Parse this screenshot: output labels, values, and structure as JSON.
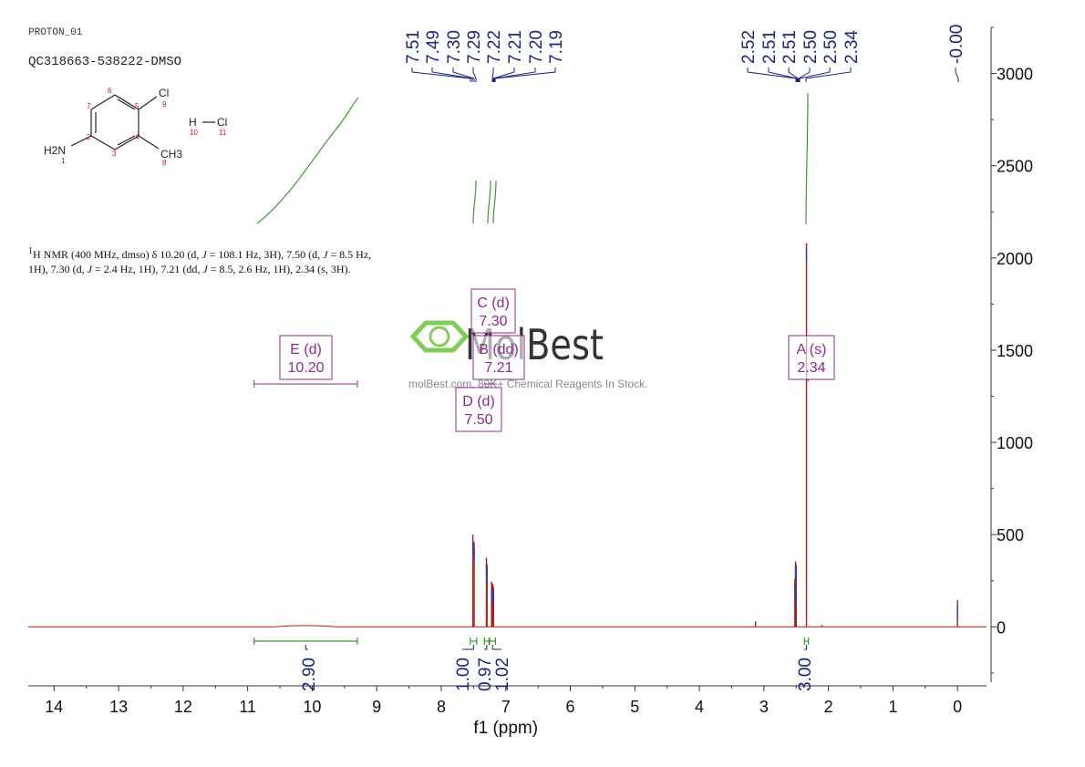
{
  "header": {
    "experiment": "PROTON_01",
    "sample": "QC318663-538222-DMSO"
  },
  "description": {
    "sup": "1",
    "p1": "H NMR (400 MHz, dmso) δ 10.20 (d, ",
    "j1": "J",
    "p2": " = 108.1 Hz, 3H), 7.50 (d, ",
    "j2": "J",
    "p3": " = 8.5 Hz, 1H), 7.30 (d, ",
    "j3": "J",
    "p4": " = 2.4 Hz, 1H), 7.21 (dd, ",
    "j4": "J",
    "p5": " = 8.5, 2.6 Hz, 1H), 2.34 (s, 3H)."
  },
  "structure": {
    "atoms": [
      "H2N",
      "Cl",
      "CH3",
      "H",
      "Cl"
    ],
    "numbers": [
      "1",
      "2",
      "3",
      "4",
      "5",
      "6",
      "7",
      "8",
      "9",
      "10",
      "11"
    ]
  },
  "watermark": {
    "brand": "MolBest",
    "tagline": "molBest.com, 80K+ Chemical Reagents In Stock."
  },
  "colors": {
    "spectrum": "#a8201a",
    "integral": "#3a9a2c",
    "peak_label": "#1a237e",
    "multiplet": "#8e2a8c",
    "brand_green": "#6cc23a"
  },
  "chart_data": {
    "type": "line",
    "xlabel": "f1 (ppm)",
    "ylabel": "",
    "xlim": [
      14.4,
      -0.45
    ],
    "ylim": [
      -300,
      3250
    ],
    "x_ticks": [
      14,
      13,
      12,
      11,
      10,
      9,
      8,
      7,
      6,
      5,
      4,
      3,
      2,
      1,
      0
    ],
    "y_ticks": [
      0,
      500,
      1000,
      1500,
      2000,
      2500,
      3000
    ],
    "peaks": [
      {
        "ppm": 7.51,
        "intensity": 500
      },
      {
        "ppm": 7.49,
        "intensity": 460
      },
      {
        "ppm": 7.3,
        "intensity": 375
      },
      {
        "ppm": 7.29,
        "intensity": 340
      },
      {
        "ppm": 7.22,
        "intensity": 245
      },
      {
        "ppm": 7.21,
        "intensity": 235
      },
      {
        "ppm": 7.2,
        "intensity": 230
      },
      {
        "ppm": 7.19,
        "intensity": 215
      },
      {
        "ppm": 3.13,
        "intensity": 30
      },
      {
        "ppm": 2.52,
        "intensity": 260
      },
      {
        "ppm": 2.51,
        "intensity": 355
      },
      {
        "ppm": 2.5,
        "intensity": 340
      },
      {
        "ppm": 2.5,
        "intensity": 240
      },
      {
        "ppm": 2.34,
        "intensity": 2080
      },
      {
        "ppm": 2.1,
        "intensity": 10
      },
      {
        "ppm": 0.0,
        "intensity": 145
      }
    ],
    "peak_labels_left": [
      "7.51",
      "7.49",
      "7.30",
      "7.29",
      "7.22",
      "7.21",
      "7.20",
      "7.19"
    ],
    "peak_labels_mid": [
      "2.52",
      "2.51",
      "2.51",
      "2.50",
      "2.50",
      "2.34"
    ],
    "peak_labels_right": [
      "-0.00"
    ],
    "multiplets": [
      {
        "name": "E (d)",
        "shift": "10.20",
        "from": 10.9,
        "to": 9.3
      },
      {
        "name": "C (d)",
        "shift": "7.30"
      },
      {
        "name": "B (dd)",
        "shift": "7.21"
      },
      {
        "name": "D (d)",
        "shift": "7.50"
      },
      {
        "name": "A (s)",
        "shift": "2.34"
      }
    ],
    "integrals": [
      {
        "value": "2.90",
        "from": 10.9,
        "to": 9.3
      },
      {
        "value": "1.00",
        "from": 7.55,
        "to": 7.45
      },
      {
        "value": "0.97",
        "from": 7.33,
        "to": 7.26
      },
      {
        "value": "1.02",
        "from": 7.25,
        "to": 7.16
      },
      {
        "value": "3.00",
        "from": 2.37,
        "to": 2.31
      }
    ]
  }
}
